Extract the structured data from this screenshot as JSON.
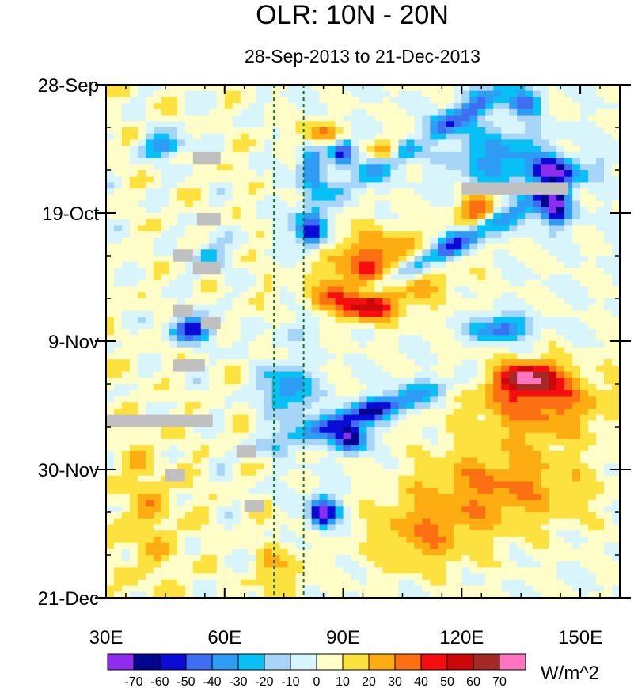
{
  "chart_data": {
    "type": "heatmap",
    "title": "OLR: 10N - 20N",
    "subtitle": "28-Sep-2013 to 21-Dec-2013",
    "x_axis": {
      "range": [
        30,
        160
      ],
      "ticks": [
        30,
        60,
        90,
        120,
        150
      ],
      "tick_labels": [
        "30E",
        "60E",
        "90E",
        "120E",
        "150E"
      ]
    },
    "y_axis": {
      "range_days": [
        0,
        84
      ],
      "ticks_days": [
        0,
        21,
        42,
        63,
        84
      ],
      "tick_labels": [
        "28-Sep",
        "19-Oct",
        "9-Nov",
        "30-Nov",
        "21-Dec"
      ]
    },
    "reference_lines_lon": [
      72.5,
      80
    ],
    "missing_blocks": [
      {
        "lon": [
          52,
          59
        ],
        "day": [
          11,
          13
        ]
      },
      {
        "lon": [
          53,
          59
        ],
        "day": [
          21,
          23
        ]
      },
      {
        "lon": [
          47,
          52
        ],
        "day": [
          27,
          29
        ]
      },
      {
        "lon": [
          52,
          59
        ],
        "day": [
          29,
          31
        ]
      },
      {
        "lon": [
          47,
          52
        ],
        "day": [
          36,
          38
        ]
      },
      {
        "lon": [
          54,
          59
        ],
        "day": [
          38,
          40
        ]
      },
      {
        "lon": [
          47,
          55
        ],
        "day": [
          45,
          47
        ]
      },
      {
        "lon": [
          30,
          57
        ],
        "day": [
          54,
          56
        ]
      },
      {
        "lon": [
          63,
          68
        ],
        "day": [
          59,
          61
        ]
      },
      {
        "lon": [
          45,
          50
        ],
        "day": [
          63,
          65
        ]
      },
      {
        "lon": [
          65,
          70
        ],
        "day": [
          68,
          70
        ]
      },
      {
        "lon": [
          120,
          147
        ],
        "day": [
          16,
          18
        ]
      }
    ],
    "colorbar": {
      "levels": [
        -70,
        -60,
        -50,
        -40,
        -30,
        -20,
        -10,
        0,
        10,
        20,
        30,
        40,
        50,
        60,
        70
      ],
      "labels": [
        "-70",
        "-60",
        "-50",
        "-40",
        "-30",
        "-20",
        "-10",
        "0",
        "10",
        "20",
        "30",
        "40",
        "50",
        "60",
        "70"
      ],
      "colors": [
        "#8c2df0",
        "#03058f",
        "#0a0cd6",
        "#3e6ef2",
        "#2e9bf5",
        "#07c1f6",
        "#a6d5f7",
        "#d8f5fb",
        "#fffdc8",
        "#fde23f",
        "#fdad11",
        "#fc6f13",
        "#f60d10",
        "#cc0709",
        "#a32a25",
        "#ff74c0"
      ],
      "units": "W/m^2"
    },
    "missing_color": "#c0c0c0",
    "grid": false
  }
}
